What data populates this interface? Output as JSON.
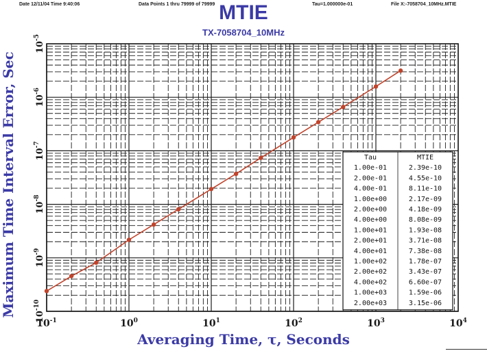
{
  "header": {
    "date": "Date 12/11/04 Time 9:40:06",
    "points": "Data Points 1 thru 79999 of 79999",
    "tau": "Tau=1.000000e-01",
    "file": "File X:-7058704_10MHz.MTIE"
  },
  "colors": {
    "title": "#3b3aa6",
    "series": "#c0442c",
    "grid": "#1a1a1a"
  },
  "chart_data": {
    "type": "line",
    "title": "MTIE",
    "subtitle": "TX-7058704_10MHz",
    "xlabel": "Averaging Time, τ, Seconds",
    "ylabel": "Maximum Time Interval Error, Sec",
    "xscale": "log",
    "yscale": "log",
    "xlim": [
      0.1,
      10000
    ],
    "ylim": [
      1e-10,
      1e-05
    ],
    "grid": true,
    "x_tick_labels": [
      {
        "base": "10",
        "exp": "-1",
        "value": 0.1
      },
      {
        "base": "10",
        "exp": "0",
        "value": 1
      },
      {
        "base": "10",
        "exp": "1",
        "value": 10
      },
      {
        "base": "10",
        "exp": "2",
        "value": 100
      },
      {
        "base": "10",
        "exp": "3",
        "value": 1000
      },
      {
        "base": "10",
        "exp": "4",
        "value": 10000
      }
    ],
    "y_tick_labels": [
      {
        "base": "10",
        "exp": "-5",
        "value": 1e-05
      },
      {
        "base": "10",
        "exp": "-6",
        "value": 1e-06
      },
      {
        "base": "10",
        "exp": "-7",
        "value": 1e-07
      },
      {
        "base": "10",
        "exp": "-8",
        "value": 1e-08
      },
      {
        "base": "10",
        "exp": "-9",
        "value": 1e-09
      },
      {
        "base": "10",
        "exp": "-10",
        "value": 1e-10
      }
    ],
    "series": [
      {
        "color": "#c0442c",
        "x": [
          0.1,
          0.2,
          0.4,
          1,
          2,
          4,
          10,
          20,
          40,
          100,
          200,
          400,
          1000,
          2000
        ],
        "y": [
          2.39e-10,
          4.55e-10,
          8.11e-10,
          2.17e-09,
          4.18e-09,
          8.08e-09,
          1.93e-08,
          3.71e-08,
          7.38e-08,
          1.78e-07,
          3.43e-07,
          6.6e-07,
          1.59e-06,
          3.15e-06
        ]
      }
    ],
    "legend": {
      "position": "bottom-right",
      "headers": [
        "Tau",
        "MTIE"
      ],
      "rows": [
        [
          "1.00e-01",
          "2.39e-10"
        ],
        [
          "2.00e-01",
          "4.55e-10"
        ],
        [
          "4.00e-01",
          "8.11e-10"
        ],
        [
          "1.00e+00",
          "2.17e-09"
        ],
        [
          "2.00e+00",
          "4.18e-09"
        ],
        [
          "4.00e+00",
          "8.08e-09"
        ],
        [
          "1.00e+01",
          "1.93e-08"
        ],
        [
          "2.00e+01",
          "3.71e-08"
        ],
        [
          "4.00e+01",
          "7.38e-08"
        ],
        [
          "1.00e+02",
          "1.78e-07"
        ],
        [
          "2.00e+02",
          "3.43e-07"
        ],
        [
          "4.00e+02",
          "6.60e-07"
        ],
        [
          "1.00e+03",
          "1.59e-06"
        ],
        [
          "2.00e+03",
          "3.15e-06"
        ]
      ]
    }
  }
}
